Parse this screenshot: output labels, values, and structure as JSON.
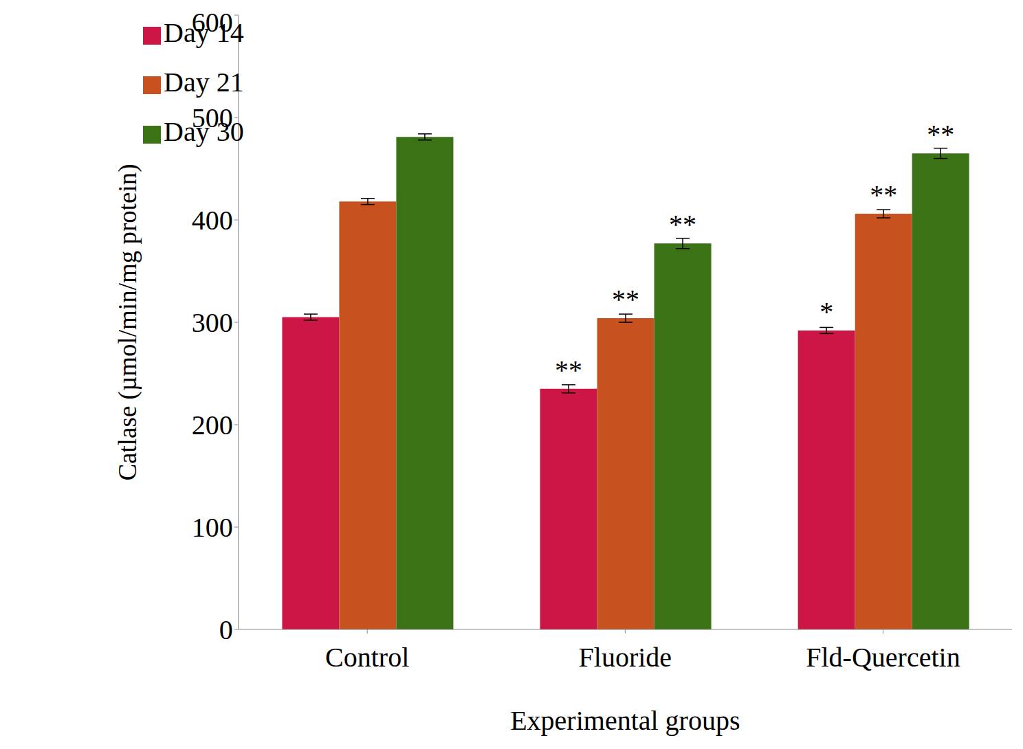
{
  "chart_data": {
    "type": "bar",
    "x_label": "Experimental groups",
    "y_label": "Catlase (µmol/min/mg protein)",
    "categories": [
      "Control",
      "Fluoride",
      "Fld-Quercetin"
    ],
    "series": [
      {
        "name": "Day 14",
        "color": "#cc1646",
        "values": [
          305,
          235,
          292
        ],
        "errors": [
          3,
          4,
          3
        ],
        "annotations": [
          null,
          "**",
          "*"
        ]
      },
      {
        "name": "Day 21",
        "color": "#c8521f",
        "values": [
          418,
          304,
          406
        ],
        "errors": [
          3,
          4,
          4
        ],
        "annotations": [
          null,
          "**",
          "**"
        ]
      },
      {
        "name": "Day 30",
        "color": "#3b7216",
        "values": [
          481,
          377,
          465
        ],
        "errors": [
          3,
          5,
          5
        ],
        "annotations": [
          null,
          "**",
          "**"
        ]
      }
    ],
    "ylim": [
      0,
      600
    ],
    "yticks": [
      0,
      100,
      200,
      300,
      400,
      500,
      600
    ],
    "grid": false,
    "legend": "upper left"
  }
}
